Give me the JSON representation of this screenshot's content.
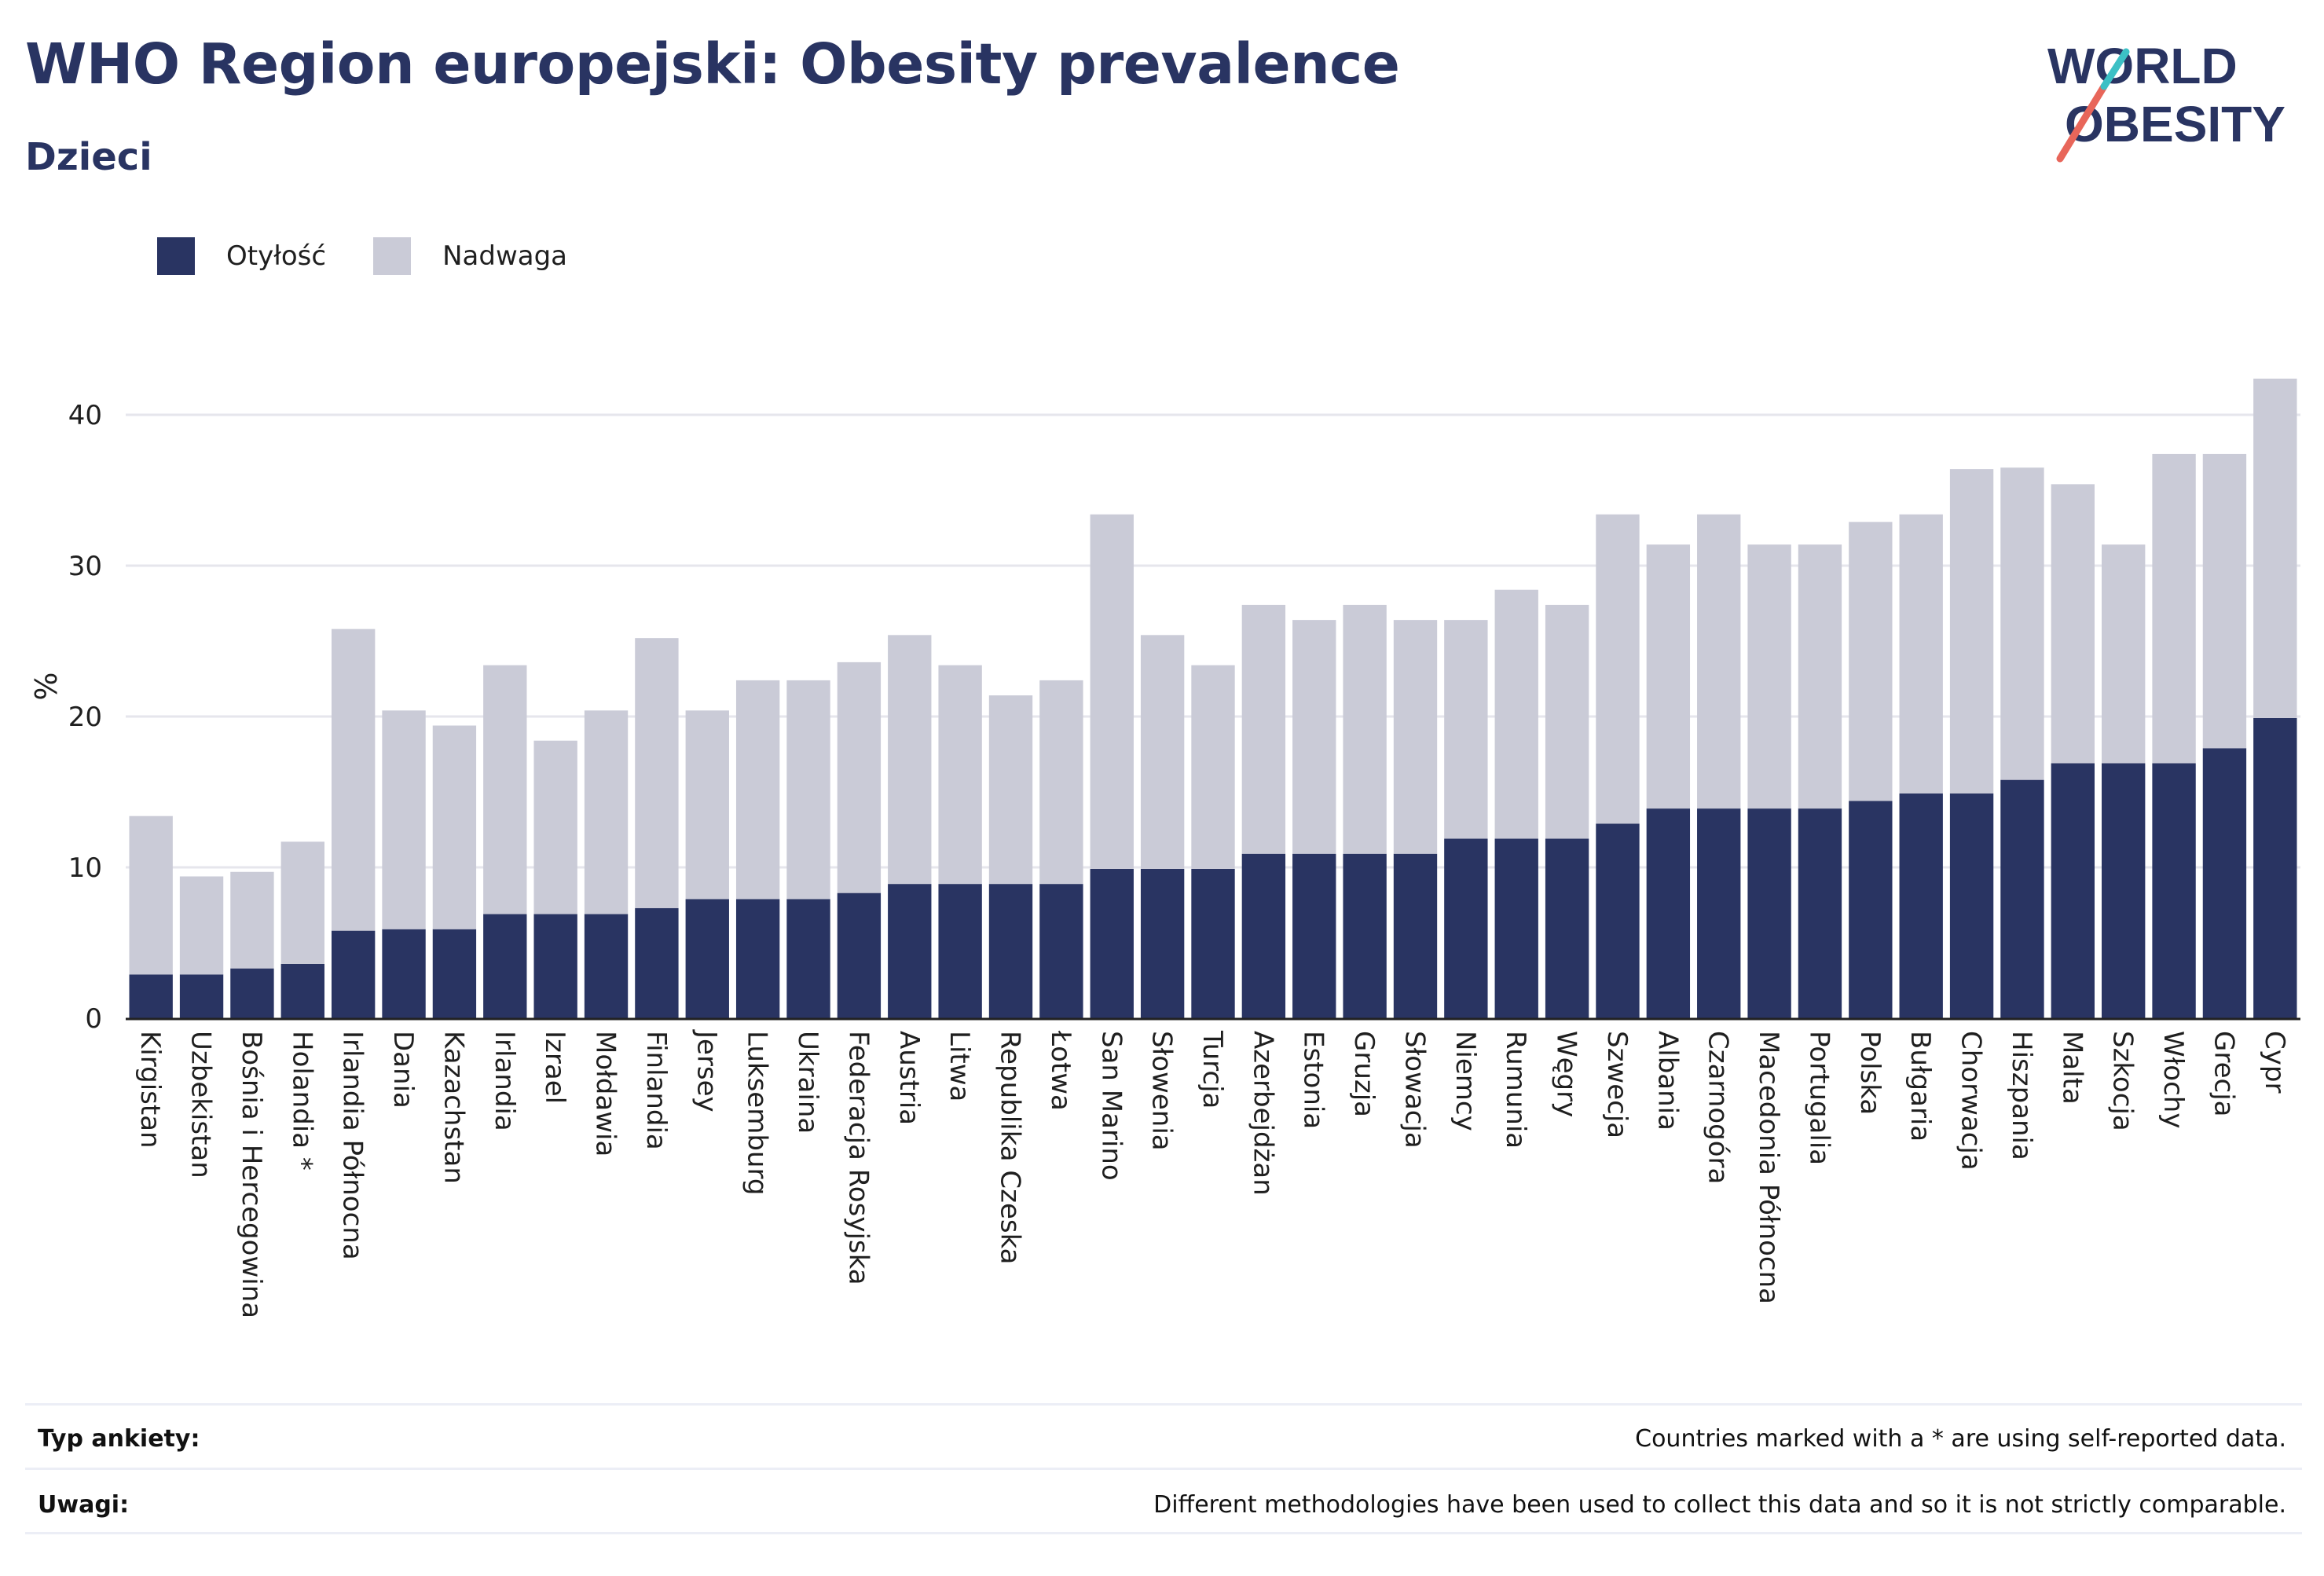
{
  "header": {
    "title": "WHO Region europejski: Obesity prevalence",
    "subtitle": "Dzieci"
  },
  "logo": {
    "line1": "WORLD",
    "line2": "OBESITY"
  },
  "colors": {
    "obesity": "#293462",
    "overweight": "#cacbd7",
    "grid": "#e6e6ec",
    "accent_red": "#e8665a",
    "accent_teal": "#3cc0c5"
  },
  "footer": {
    "survey_label": "Typ ankiety:",
    "survey_value": "Countries marked with a * are using self-reported data.",
    "notes_label": "Uwagi:",
    "notes_value": "Different methodologies have been used to collect this data and so it is not strictly comparable."
  },
  "chart_data": {
    "type": "bar",
    "stacked": true,
    "ylabel": "%",
    "xlabel": "",
    "ylim": [
      0,
      45
    ],
    "yticks": [
      0,
      10,
      20,
      30,
      40
    ],
    "grid": true,
    "legend_placement": "top-left",
    "categories": [
      "Kirgistan",
      "Uzbekistan",
      "Bośnia i Hercegowina",
      "Holandia *",
      "Irlandia Północna",
      "Dania",
      "Kazachstan",
      "Irlandia",
      "Izrael",
      "Mołdawia",
      "Finlandia",
      "Jersey",
      "Luksemburg",
      "Ukraina",
      "Federacja Rosyjska",
      "Austria",
      "Litwa",
      "Republika Czeska",
      "Łotwa",
      "San Marino",
      "Słowenia",
      "Turcja",
      "Azerbejdżan",
      "Estonia",
      "Gruzja",
      "Słowacja",
      "Niemcy",
      "Rumunia",
      "Węgry",
      "Szwecja",
      "Albania",
      "Czarnogóra",
      "Macedonia Północna",
      "Portugalia",
      "Polska",
      "Bułgaria",
      "Chorwacja",
      "Hiszpania",
      "Malta",
      "Szkocja",
      "Włochy",
      "Grecja",
      "Cypr"
    ],
    "series": [
      {
        "name": "Otyłość",
        "color": "#293462",
        "values": [
          2.9,
          2.9,
          3.3,
          3.6,
          5.8,
          5.9,
          5.9,
          6.9,
          6.9,
          6.9,
          7.3,
          7.9,
          7.9,
          7.9,
          8.3,
          8.9,
          8.9,
          8.9,
          8.9,
          9.9,
          9.9,
          9.9,
          10.9,
          10.9,
          10.9,
          10.9,
          11.9,
          11.9,
          11.9,
          12.9,
          13.9,
          13.9,
          13.9,
          13.9,
          14.4,
          14.9,
          14.9,
          15.8,
          16.9,
          16.9,
          16.9,
          17.9,
          19.9
        ]
      },
      {
        "name": "Nadwaga",
        "color": "#cacbd7",
        "values": [
          10.5,
          6.5,
          6.4,
          8.1,
          20.0,
          14.5,
          13.5,
          16.5,
          11.5,
          13.5,
          17.9,
          12.5,
          14.5,
          14.5,
          15.3,
          16.5,
          14.5,
          12.5,
          13.5,
          23.5,
          15.5,
          13.5,
          16.5,
          15.5,
          16.5,
          15.5,
          14.5,
          16.5,
          15.5,
          20.5,
          17.5,
          19.5,
          17.5,
          17.5,
          18.5,
          18.5,
          21.5,
          20.7,
          18.5,
          14.5,
          20.5,
          19.5,
          22.5
        ]
      }
    ]
  }
}
